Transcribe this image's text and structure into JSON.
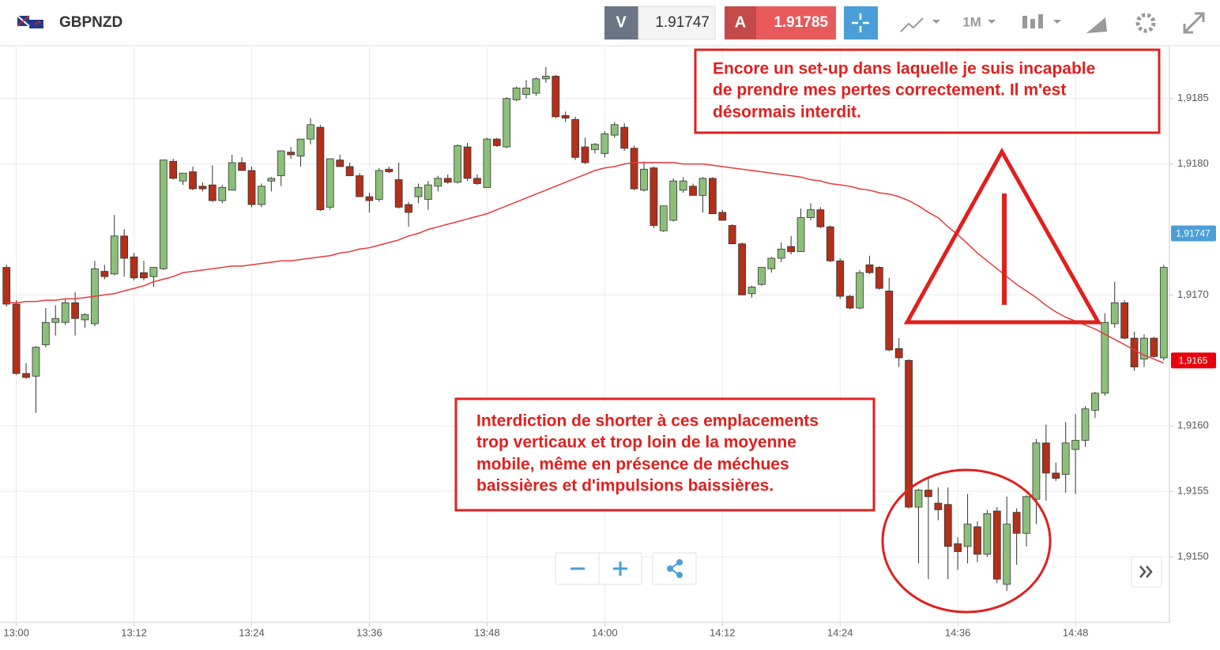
{
  "toolbar": {
    "symbol": "GBPNZD",
    "bid_tag": "V",
    "bid": "1.91747",
    "ask_tag": "A",
    "ask": "1.91785",
    "timeframe": "1M"
  },
  "chart_data": {
    "type": "candlestick",
    "categories": [
      null,
      "13:00",
      null,
      null,
      null,
      null,
      null,
      null,
      null,
      null,
      null,
      null,
      null,
      "13:12",
      null,
      null,
      null,
      null,
      null,
      null,
      null,
      null,
      null,
      null,
      null,
      "13:24",
      null,
      null,
      null,
      null,
      null,
      null,
      null,
      null,
      null,
      null,
      null,
      "13:36",
      null,
      null,
      null,
      null,
      null,
      null,
      null,
      null,
      null,
      null,
      null,
      "13:48",
      null,
      null,
      null,
      null,
      null,
      null,
      null,
      null,
      null,
      null,
      null,
      "14:00",
      null,
      null,
      null,
      null,
      null,
      null,
      null,
      null,
      null,
      null,
      null,
      "14:12",
      null,
      null,
      null,
      null,
      null,
      null,
      null,
      null,
      null,
      null,
      null,
      "14:24",
      null,
      null,
      null,
      null,
      null,
      null,
      null,
      null,
      null,
      null,
      null,
      "14:36",
      null,
      null,
      null,
      null,
      null,
      null,
      null,
      null,
      null,
      null,
      null,
      "14:48",
      null,
      null,
      null,
      null,
      null,
      null,
      null,
      null,
      null
    ],
    "open": [
      1.91721,
      1.91693,
      1.9164,
      1.91638,
      1.91662,
      1.91679,
      1.91679,
      1.91694,
      1.91681,
      1.91678,
      1.91718,
      1.91716,
      1.91745,
      1.91729,
      1.91717,
      1.91714,
      1.9172,
      1.91802,
      1.91787,
      1.91794,
      1.91783,
      1.91784,
      1.91772,
      1.9178,
      1.91801,
      1.91795,
      1.91769,
      1.91787,
      1.91791,
      1.91809,
      1.91806,
      1.91819,
      1.91828,
      1.91767,
      1.91803,
      1.91798,
      1.91791,
      1.91775,
      1.91773,
      1.91796,
      1.91788,
      1.91769,
      1.91775,
      1.91773,
      1.91783,
      1.91789,
      1.91786,
      1.91813,
      1.91789,
      1.91782,
      1.91819,
      1.91813,
      1.91849,
      1.91853,
      1.91854,
      1.91865,
      1.91867,
      1.91837,
      1.91834,
      1.91813,
      1.91811,
      1.91808,
      1.91822,
      1.91828,
      1.91812,
      1.9178,
      1.91797,
      1.91749,
      1.91757,
      1.9178,
      1.91783,
      1.91776,
      1.91789,
      1.91763,
      1.91753,
      1.91739,
      1.91701,
      1.91708,
      1.9172,
      1.91728,
      1.91737,
      1.91733,
      1.91759,
      1.91765,
      1.91752,
      1.91726,
      1.91699,
      1.9169,
      1.91723,
      1.91721,
      1.91703,
      1.91659,
      1.9165,
      1.91538,
      1.91551,
      1.91541,
      1.9154,
      1.9151,
      1.91508,
      1.91523,
      1.91502,
      1.91535,
      1.91479,
      1.91534,
      1.91518,
      1.91544,
      1.91587,
      1.91564,
      1.91563,
      1.91582,
      1.91589,
      1.91612,
      1.91625,
      1.91678,
      1.91694,
      1.91667,
      1.91651,
      1.91667,
      1.91652
    ],
    "high": [
      1.91723,
      1.91696,
      1.91648,
      1.91661,
      1.9169,
      1.91692,
      1.91697,
      1.91702,
      1.91686,
      1.91726,
      1.91723,
      1.91761,
      1.9175,
      1.91732,
      1.91726,
      1.91721,
      1.91803,
      1.91804,
      1.91793,
      1.91798,
      1.91786,
      1.91799,
      1.91784,
      1.91807,
      1.91805,
      1.91798,
      1.91785,
      1.9179,
      1.9181,
      1.91813,
      1.91819,
      1.91835,
      1.9183,
      1.91804,
      1.91807,
      1.91801,
      1.91793,
      1.91778,
      1.91797,
      1.91798,
      1.91801,
      1.91771,
      1.91785,
      1.91787,
      1.91791,
      1.91792,
      1.91815,
      1.91816,
      1.91792,
      1.9182,
      1.9182,
      1.91851,
      1.91859,
      1.91864,
      1.91866,
      1.91874,
      1.91868,
      1.9184,
      1.91836,
      1.9182,
      1.91816,
      1.91825,
      1.91832,
      1.91831,
      1.91814,
      1.91802,
      1.91798,
      1.91768,
      1.91789,
      1.9179,
      1.91785,
      1.9179,
      1.9179,
      1.91765,
      1.91754,
      1.9174,
      1.91707,
      1.91717,
      1.91729,
      1.9174,
      1.91745,
      1.91766,
      1.9177,
      1.91767,
      1.91753,
      1.91728,
      1.917,
      1.91719,
      1.9173,
      1.91722,
      1.91713,
      1.91667,
      1.91651,
      1.91552,
      1.9156,
      1.91553,
      1.91553,
      1.91515,
      1.91548,
      1.91527,
      1.91536,
      1.91538,
      1.91546,
      1.91537,
      1.91547,
      1.9159,
      1.91601,
      1.91572,
      1.91603,
      1.91609,
      1.91615,
      1.91626,
      1.91686,
      1.9171,
      1.91696,
      1.91672,
      1.9167,
      1.91668,
      1.91723
    ],
    "low": [
      1.91691,
      1.91639,
      1.91636,
      1.9161,
      1.9166,
      1.91669,
      1.91677,
      1.91669,
      1.91675,
      1.91676,
      1.91712,
      1.91715,
      1.91714,
      1.91711,
      1.91711,
      1.91706,
      1.91719,
      1.91788,
      1.91784,
      1.9178,
      1.91779,
      1.91771,
      1.9177,
      1.9178,
      1.91795,
      1.91767,
      1.91767,
      1.91779,
      1.91783,
      1.91804,
      1.91798,
      1.91815,
      1.91764,
      1.91765,
      1.91798,
      1.91791,
      1.91775,
      1.91763,
      1.91771,
      1.91793,
      1.91766,
      1.91752,
      1.9177,
      1.91765,
      1.91779,
      1.91785,
      1.91785,
      1.91787,
      1.91784,
      1.91782,
      1.91813,
      1.91812,
      1.91848,
      1.9185,
      1.91852,
      1.91862,
      1.91835,
      1.91832,
      1.91803,
      1.918,
      1.91808,
      1.91805,
      1.9182,
      1.9181,
      1.9178,
      1.91779,
      1.91751,
      1.91748,
      1.91756,
      1.91778,
      1.91776,
      1.91763,
      1.91762,
      1.91757,
      1.91739,
      1.917,
      1.91698,
      1.91707,
      1.91717,
      1.91725,
      1.91731,
      1.91733,
      1.91757,
      1.91751,
      1.91725,
      1.91697,
      1.91689,
      1.91689,
      1.91716,
      1.91704,
      1.91657,
      1.91645,
      1.91537,
      1.91495,
      1.91483,
      1.91528,
      1.91483,
      1.9149,
      1.91495,
      1.91496,
      1.915,
      1.9148,
      1.91474,
      1.91494,
      1.91508,
      1.91525,
      1.91543,
      1.91558,
      1.91549,
      1.91548,
      1.91584,
      1.91606,
      1.91623,
      1.91675,
      1.91666,
      1.91642,
      1.91645,
      1.91652,
      1.9165
    ],
    "close": [
      1.91693,
      1.9164,
      1.91637,
      1.9166,
      1.91679,
      1.91682,
      1.91694,
      1.91682,
      1.91685,
      1.9172,
      1.91714,
      1.91745,
      1.91728,
      1.91713,
      1.91713,
      1.91721,
      1.91803,
      1.91789,
      1.91793,
      1.91781,
      1.91781,
      1.91772,
      1.91782,
      1.91801,
      1.91795,
      1.91769,
      1.91783,
      1.91789,
      1.9181,
      1.91807,
      1.91819,
      1.9183,
      1.91765,
      1.91804,
      1.91798,
      1.91791,
      1.91775,
      1.91772,
      1.91795,
      1.91794,
      1.91767,
      1.91763,
      1.91782,
      1.91784,
      1.91789,
      1.91786,
      1.91814,
      1.91789,
      1.91785,
      1.91819,
      1.91814,
      1.9185,
      1.91858,
      1.91858,
      1.91865,
      1.91867,
      1.91836,
      1.91835,
      1.91805,
      1.91801,
      1.91815,
      1.91823,
      1.9183,
      1.91812,
      1.91781,
      1.91796,
      1.91753,
      1.91768,
      1.91787,
      1.91787,
      1.91776,
      1.91789,
      1.91762,
      1.91757,
      1.91739,
      1.917,
      1.91706,
      1.91721,
      1.91728,
      1.91735,
      1.91733,
      1.91759,
      1.91765,
      1.91752,
      1.91726,
      1.91699,
      1.9169,
      1.91717,
      1.91717,
      1.91705,
      1.91658,
      1.91652,
      1.91538,
      1.91551,
      1.91546,
      1.91536,
      1.91508,
      1.91504,
      1.91525,
      1.91502,
      1.91533,
      1.91483,
      1.91525,
      1.91518,
      1.91546,
      1.91587,
      1.91564,
      1.9156,
      1.91587,
      1.91589,
      1.91613,
      1.91625,
      1.91679,
      1.91694,
      1.91667,
      1.91645,
      1.91667,
      1.91653,
      1.91721
    ],
    "up_color": "#8cc07a",
    "down_color": "#b3301a",
    "moving_average": {
      "color": "#e8383d",
      "values": [
        1.91694,
        1.91694,
        1.91695,
        1.91695,
        1.91696,
        1.91696,
        1.91697,
        1.91697,
        1.91698,
        1.91699,
        1.917,
        1.91701,
        1.91703,
        1.91705,
        1.91707,
        1.9171,
        1.91712,
        1.91714,
        1.91717,
        1.91718,
        1.91719,
        1.9172,
        1.91721,
        1.91722,
        1.91722,
        1.91723,
        1.91724,
        1.91725,
        1.91726,
        1.91726,
        1.91727,
        1.91728,
        1.91729,
        1.9173,
        1.91732,
        1.91733,
        1.91735,
        1.91736,
        1.91738,
        1.9174,
        1.91742,
        1.91745,
        1.91747,
        1.9175,
        1.91752,
        1.91754,
        1.91756,
        1.91758,
        1.9176,
        1.91762,
        1.91765,
        1.91768,
        1.91771,
        1.91774,
        1.91777,
        1.9178,
        1.91783,
        1.91786,
        1.91789,
        1.91792,
        1.91795,
        1.91797,
        1.91798,
        1.918,
        1.91801,
        1.91801,
        1.91801,
        1.91801,
        1.91801,
        1.918,
        1.918,
        1.918,
        1.91799,
        1.91798,
        1.91797,
        1.91796,
        1.91795,
        1.91794,
        1.91793,
        1.91792,
        1.91791,
        1.9179,
        1.91788,
        1.91787,
        1.91785,
        1.91784,
        1.91783,
        1.91781,
        1.9178,
        1.91778,
        1.91777,
        1.91775,
        1.91772,
        1.91768,
        1.91763,
        1.91759,
        1.91752,
        1.91746,
        1.91739,
        1.91732,
        1.91726,
        1.9172,
        1.91714,
        1.91708,
        1.91703,
        1.91698,
        1.91692,
        1.91687,
        1.91683,
        1.9168,
        1.91677,
        1.91674,
        1.9167,
        1.91666,
        1.91662,
        1.91658,
        1.91654,
        1.91651,
        1.91648
      ]
    },
    "ylim": [
      1.9145,
      1.91889
    ],
    "yticks": [
      {
        "value": 1.915,
        "label": "1,9150"
      },
      {
        "value": 1.9155,
        "label": "1,9155"
      },
      {
        "value": 1.916,
        "label": "1,9160"
      },
      {
        "value": 1.917,
        "label": "1,9170"
      },
      {
        "value": 1.918,
        "label": "1,9180"
      },
      {
        "value": 1.9185,
        "label": "1,9185"
      }
    ],
    "grid": true,
    "price_markers": [
      {
        "value": 1.91747,
        "label": "1,91747",
        "color": "#4a9fd8"
      },
      {
        "value": 1.9165,
        "label": "1,9165",
        "color": "#e8000b"
      }
    ],
    "annotations": [
      {
        "lines": [
          "Encore un set-up dans laquelle je suis incapable",
          "de prendre mes pertes correctement. Il m'est",
          "désormais interdit."
        ]
      },
      {
        "lines": [
          "Interdiction de shorter à ces emplacements",
          "trop verticaux et trop loin de la moyenne",
          "mobile, même en présence de méchues",
          "baissières et d'impulsions baissières."
        ]
      }
    ]
  }
}
